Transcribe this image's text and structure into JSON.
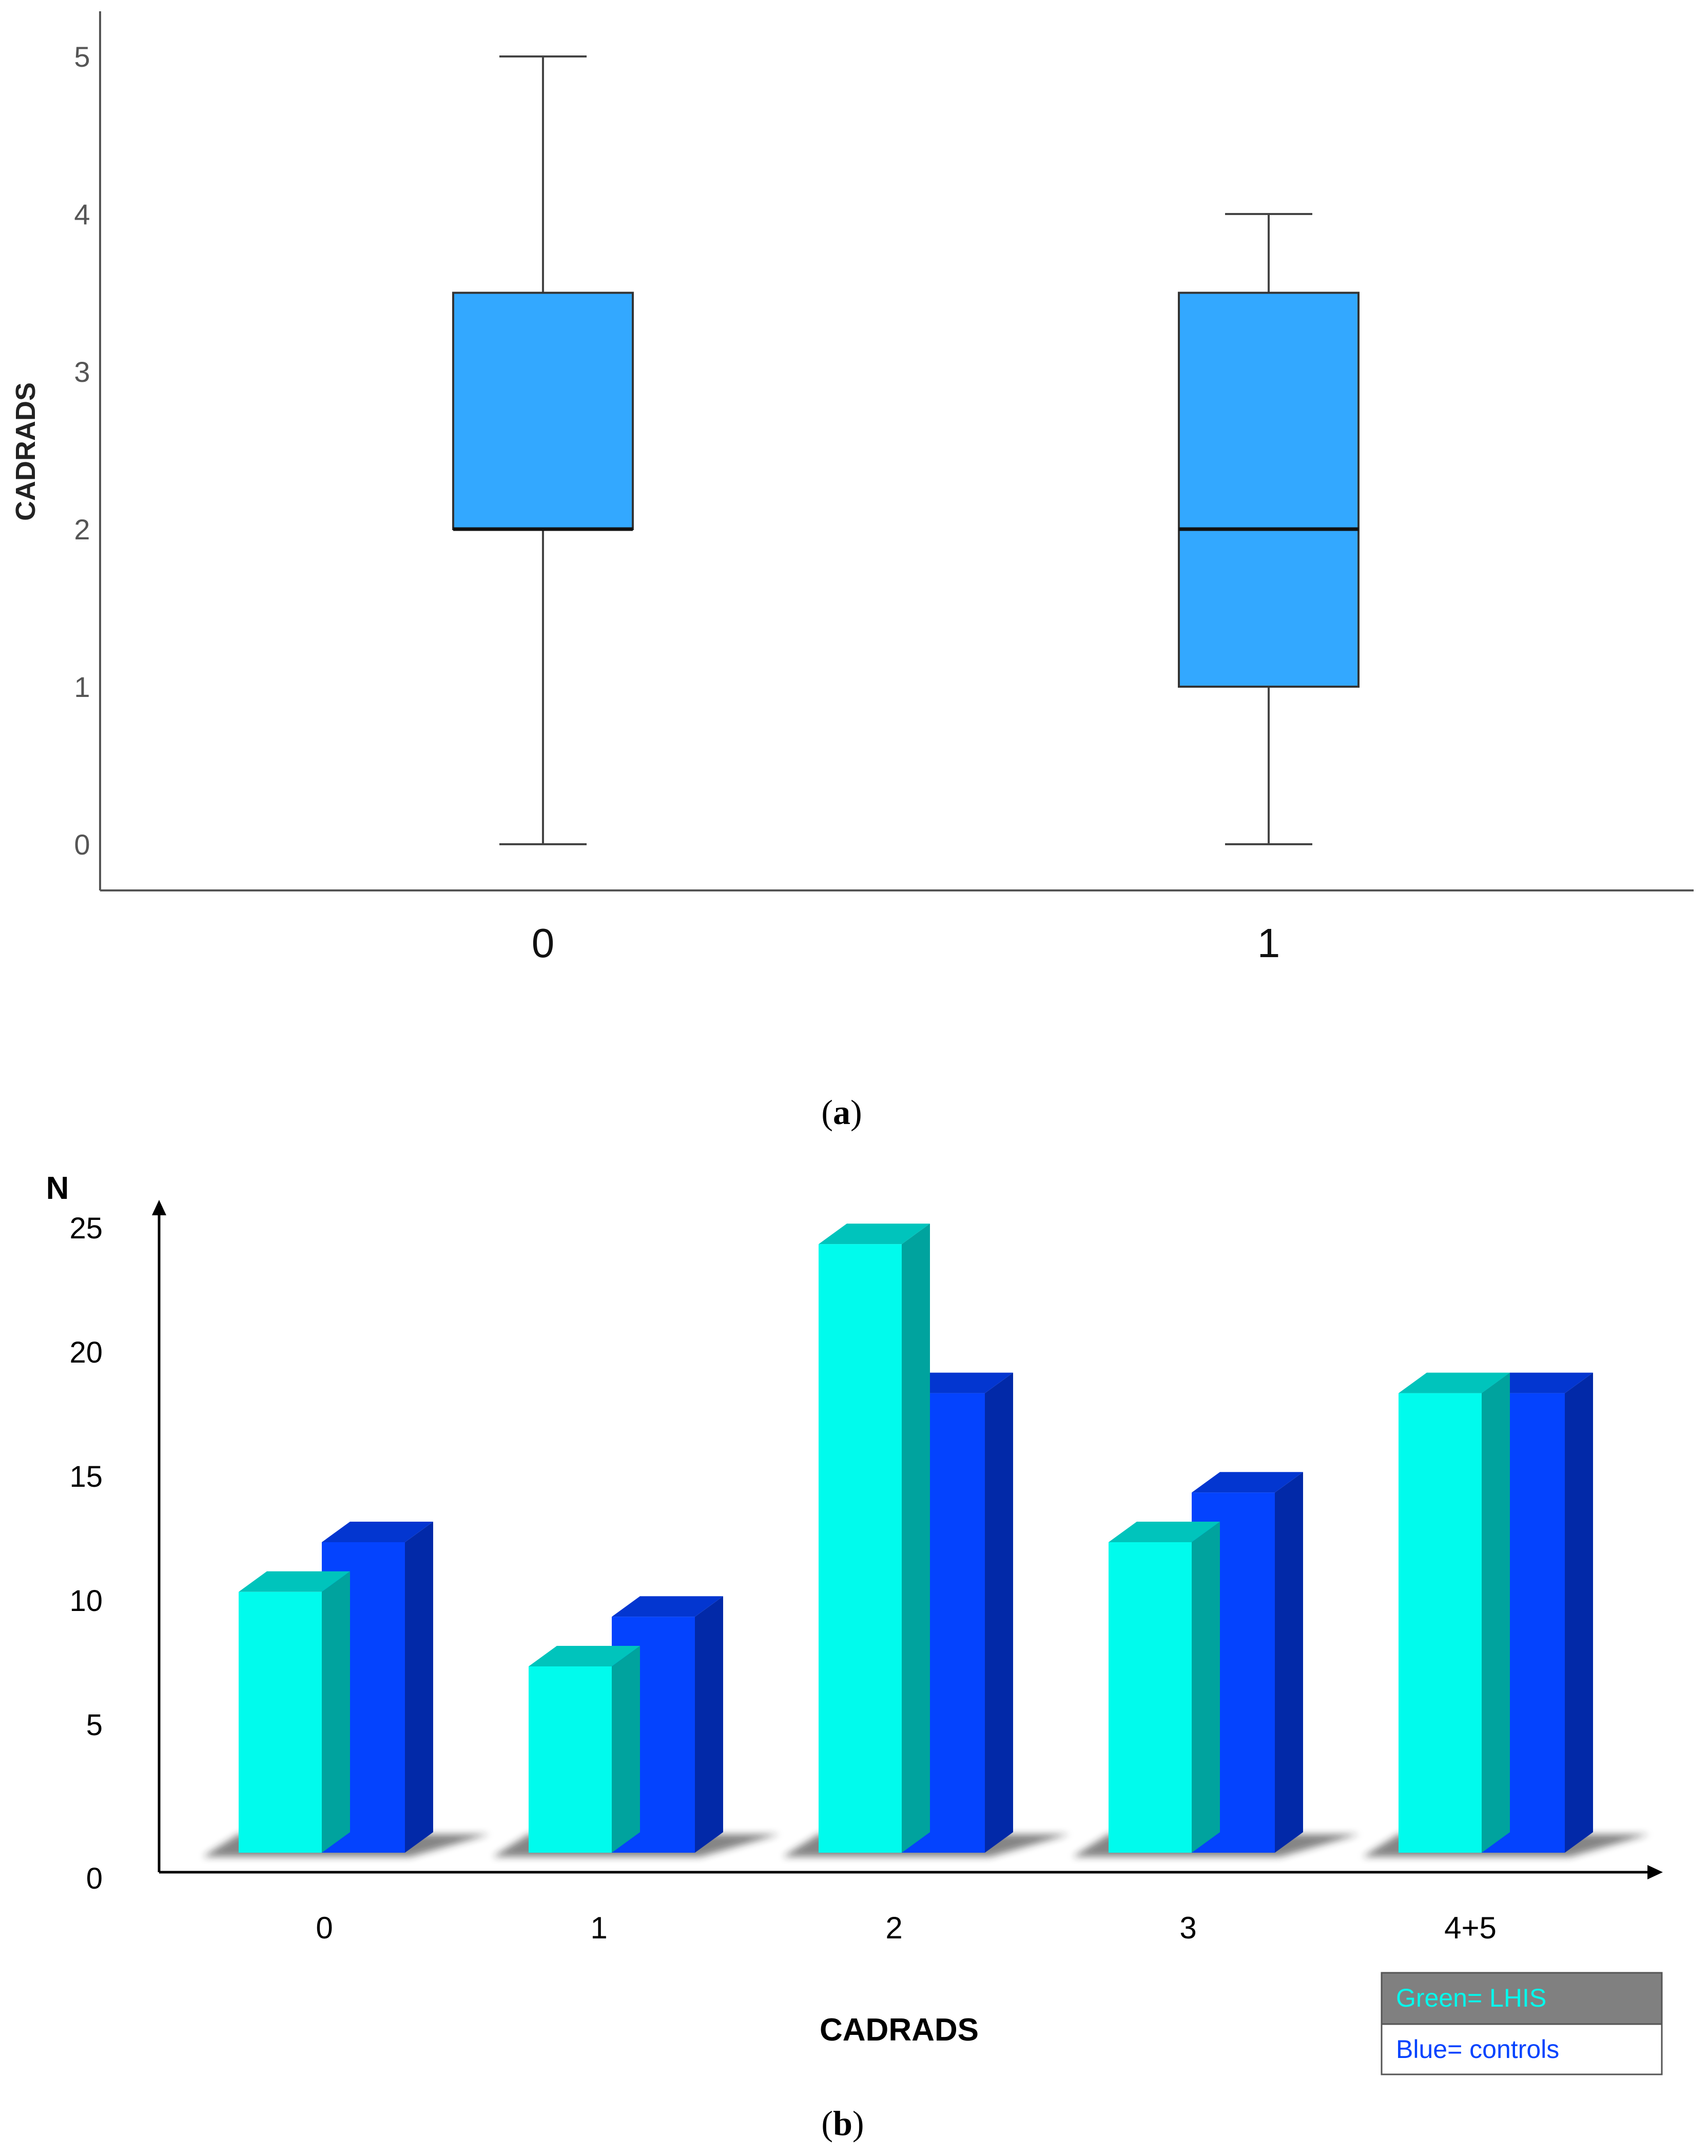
{
  "chart_data": [
    {
      "type": "boxplot",
      "panel_label": "a",
      "title": "",
      "xlabel": "",
      "ylabel": "CADRADS",
      "ylim": [
        0,
        5
      ],
      "y_ticks": [
        "0",
        "1",
        "2",
        "3",
        "4",
        "5"
      ],
      "categories": [
        "0",
        "1"
      ],
      "boxes": [
        {
          "category": "0",
          "min": 0,
          "q1": 2,
          "median": 2,
          "q3": 3.5,
          "max": 5
        },
        {
          "category": "1",
          "min": 0,
          "q1": 1,
          "median": 2,
          "q3": 3.5,
          "max": 4
        }
      ],
      "box_color": "#33a8ff"
    },
    {
      "type": "bar",
      "style": "3d-grouped",
      "panel_label": "b",
      "title": "",
      "xlabel": "CADRADS",
      "ylabel": "N",
      "ylim": [
        0,
        25
      ],
      "y_ticks": [
        "0",
        "5",
        "10",
        "15",
        "20",
        "25"
      ],
      "categories": [
        "0",
        "1",
        "2",
        "3",
        "4+5"
      ],
      "series": [
        {
          "name": "LHIS",
          "legend_label": "Green= LHIS",
          "color": "#00fbed",
          "top_color": "#00c4bc",
          "side_color": "#00a39e",
          "values": [
            10.5,
            7.5,
            24.5,
            12.5,
            18.5
          ]
        },
        {
          "name": "controls",
          "legend_label": "Blue= controls",
          "color": "#0443fe",
          "top_color": "#0336d0",
          "side_color": "#0229a8",
          "values": [
            12.5,
            9.5,
            18.5,
            14.5,
            18.5
          ]
        }
      ]
    }
  ],
  "captions": {
    "a": "a",
    "b": "b"
  }
}
